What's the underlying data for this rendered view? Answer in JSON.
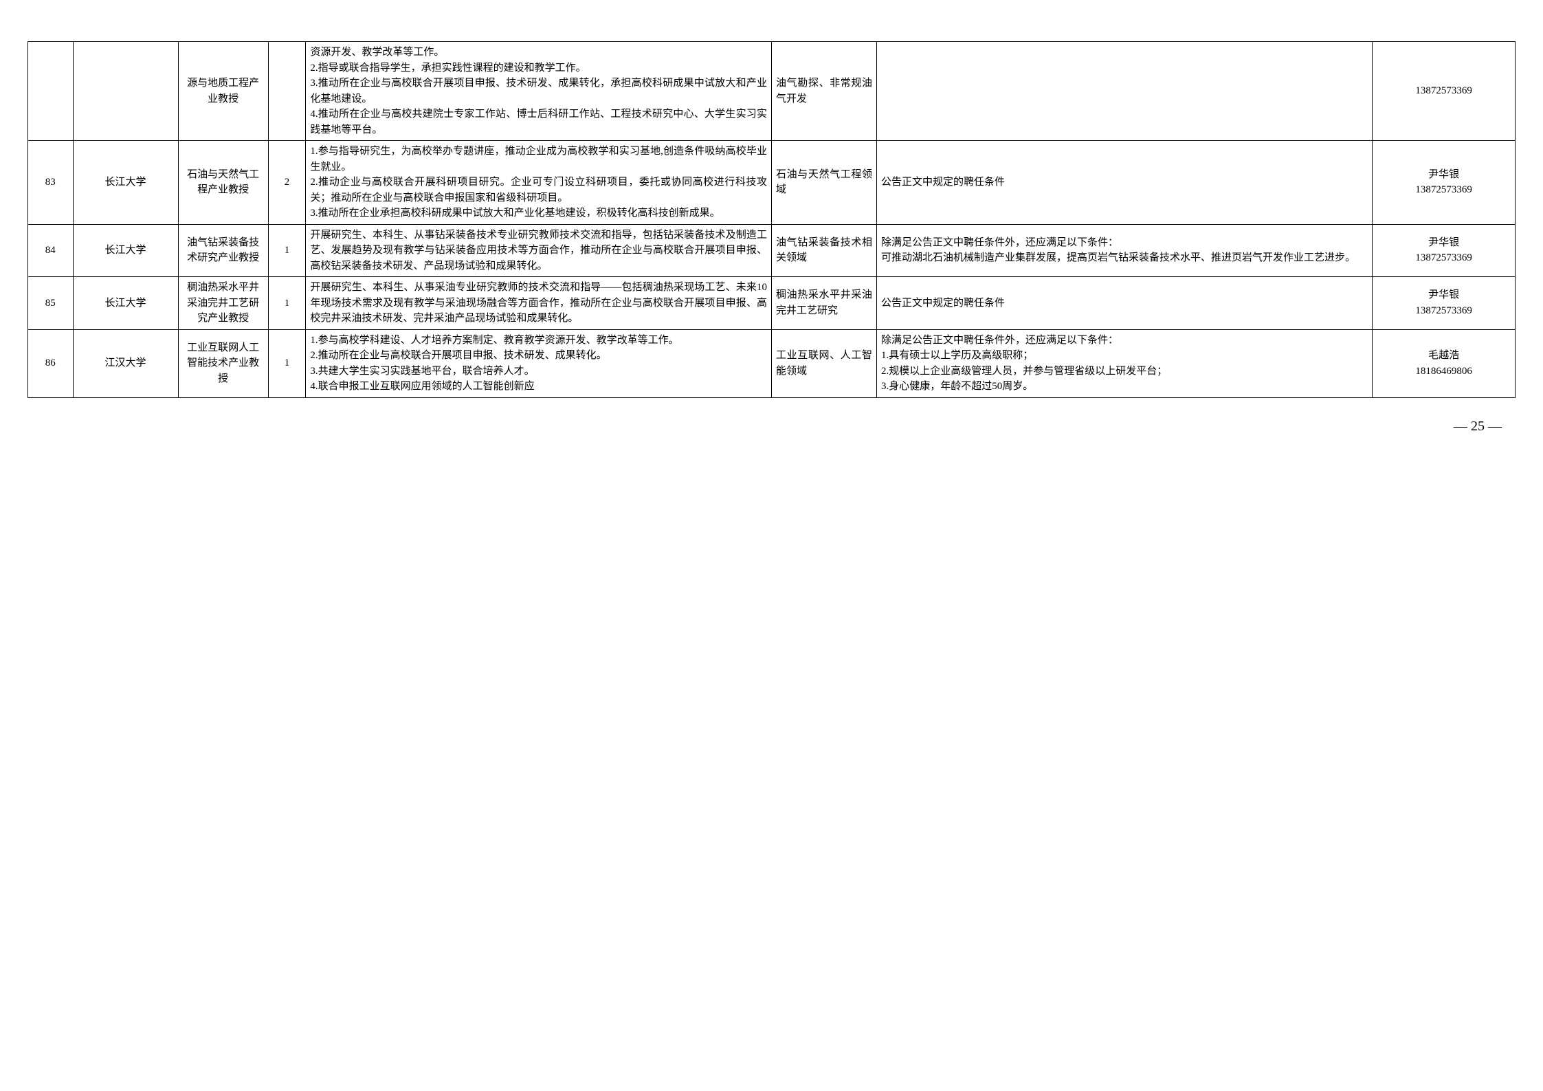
{
  "rows": [
    {
      "idx": "",
      "univ": "",
      "title": "源与地质工程产业教授",
      "num": "",
      "duty": "资源开发、教学改革等工作。\n2.指导或联合指导学生，承担实践性课程的建设和教学工作。\n3.推动所在企业与高校联合开展项目申报、技术研发、成果转化，承担高校科研成果中试放大和产业化基地建设。\n4.推动所在企业与高校共建院士专家工作站、博士后科研工作站、工程技术研究中心、大学生实习实践基地等平台。",
      "field": "油气勘探、非常规油气开发",
      "req": "",
      "contact": "13872573369"
    },
    {
      "idx": "83",
      "univ": "长江大学",
      "title": "石油与天然气工程产业教授",
      "num": "2",
      "duty": "1.参与指导研究生，为高校举办专题讲座，推动企业成为高校教学和实习基地,创造条件吸纳高校毕业生就业。\n2.推动企业与高校联合开展科研项目研究。企业可专门设立科研项目，委托或协同高校进行科技攻关；推动所在企业与高校联合申报国家和省级科研项目。\n3.推动所在企业承担高校科研成果中试放大和产业化基地建设，积极转化高科技创新成果。",
      "field": "石油与天然气工程领域",
      "req": "公告正文中规定的聘任条件",
      "contact": "尹华银\n13872573369"
    },
    {
      "idx": "84",
      "univ": "长江大学",
      "title": "油气钻采装备技术研究产业教授",
      "num": "1",
      "duty": "开展研究生、本科生、从事钻采装备技术专业研究教师技术交流和指导，包括钻采装备技术及制造工艺、发展趋势及现有教学与钻采装备应用技术等方面合作，推动所在企业与高校联合开展项目申报、高校钻采装备技术研发、产品现场试验和成果转化。",
      "field": "油气钻采装备技术相关领域",
      "req": "除满足公告正文中聘任条件外，还应满足以下条件：\n可推动湖北石油机械制造产业集群发展，提高页岩气钻采装备技术水平、推进页岩气开发作业工艺进步。",
      "contact": "尹华银\n13872573369"
    },
    {
      "idx": "85",
      "univ": "长江大学",
      "title": "稠油热采水平井采油完井工艺研究产业教授",
      "num": "1",
      "duty": "开展研究生、本科生、从事采油专业研究教师的技术交流和指导——包括稠油热采现场工艺、未来10年现场技术需求及现有教学与采油现场融合等方面合作，推动所在企业与高校联合开展项目申报、高校完井采油技术研发、完井采油产品现场试验和成果转化。",
      "field": "稠油热采水平井采油完井工艺研究",
      "req": "公告正文中规定的聘任条件",
      "contact": "尹华银\n13872573369"
    },
    {
      "idx": "86",
      "univ": "江汉大学",
      "title": "工业互联网人工智能技术产业教授",
      "num": "1",
      "duty": "1.参与高校学科建设、人才培养方案制定、教育教学资源开发、教学改革等工作。\n2.推动所在企业与高校联合开展项目申报、技术研发、成果转化。\n3.共建大学生实习实践基地平台，联合培养人才。\n4.联合申报工业互联网应用领域的人工智能创新应",
      "field": "工业互联网、人工智能领域",
      "req": "除满足公告正文中聘任条件外，还应满足以下条件：\n1.具有硕士以上学历及高级职称；\n2.规模以上企业高级管理人员，并参与管理省级以上研发平台；\n3.身心健康，年龄不超过50周岁。",
      "contact": "毛越浩\n18186469806"
    }
  ],
  "pageNum": "— 25 —"
}
